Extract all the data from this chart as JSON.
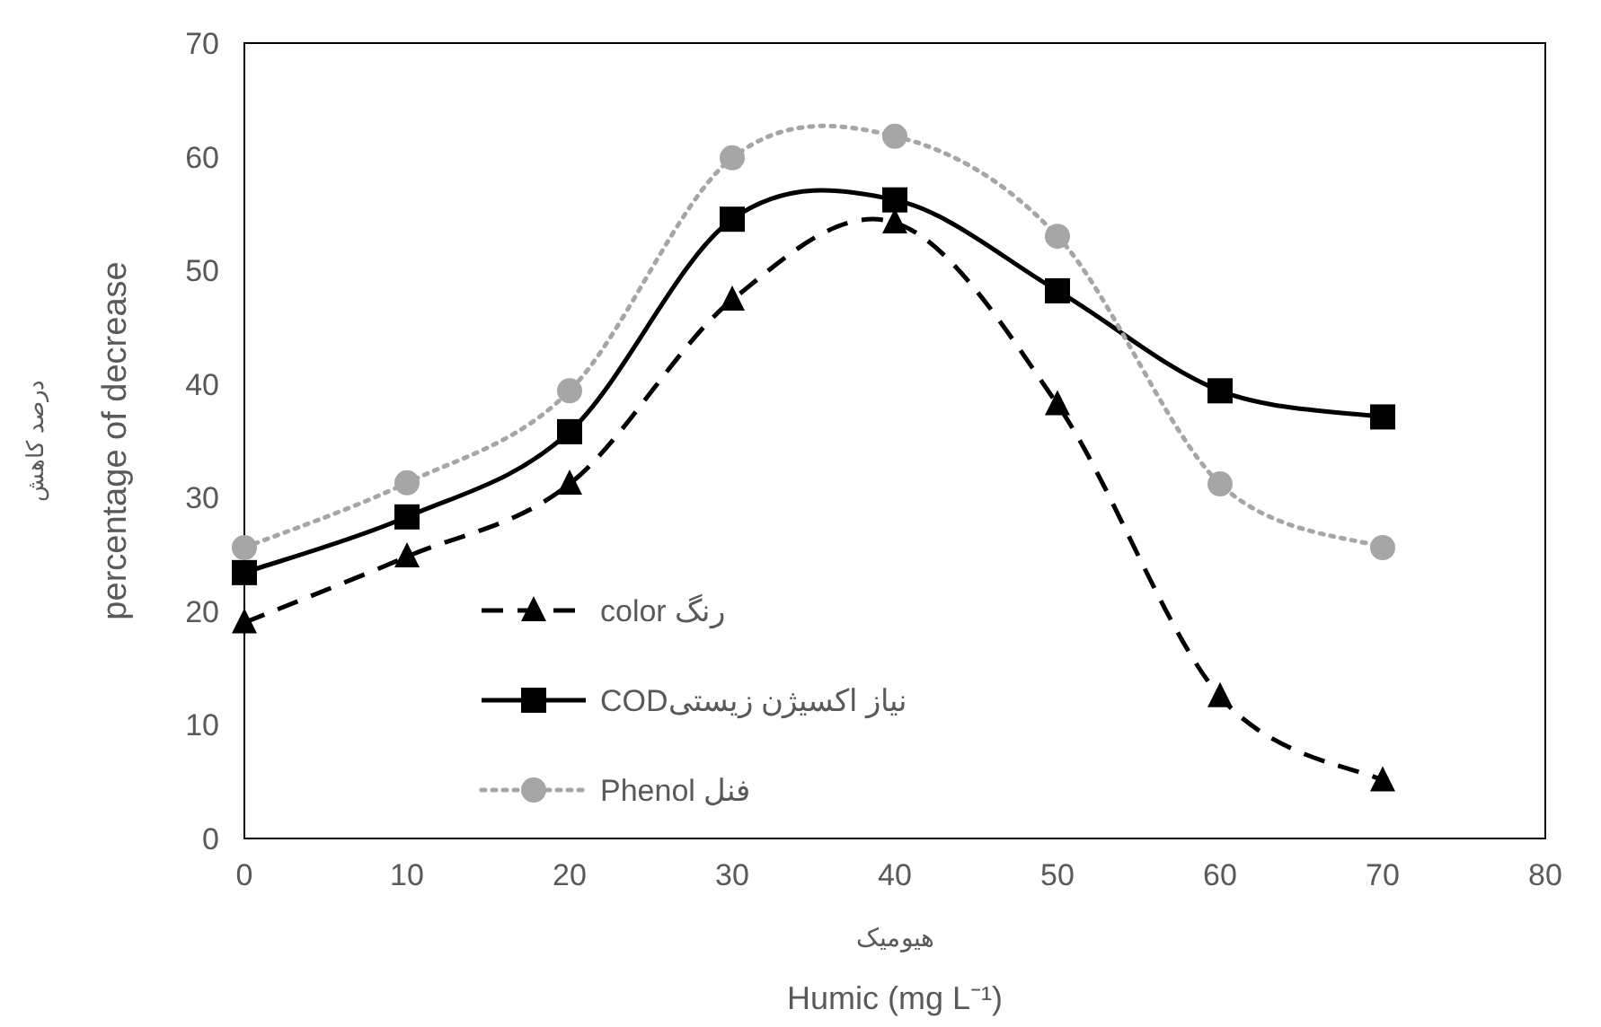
{
  "chart_data": {
    "type": "line",
    "xlabel": "هیومیک\nHumic (mg L⁻¹)",
    "ylabel": "درصد کاهش\npercentage of decrease",
    "x": [
      0,
      10,
      20,
      30,
      40,
      50,
      60,
      70
    ],
    "xlim": [
      0,
      80
    ],
    "xticks": [
      0,
      10,
      20,
      30,
      40,
      50,
      60,
      70,
      80
    ],
    "ylim": [
      0,
      70
    ],
    "yticks": [
      0,
      10,
      20,
      30,
      40,
      50,
      60,
      70
    ],
    "grid": false,
    "legend": "bottom left",
    "series": [
      {
        "name": "color رنگ",
        "color": "#000000",
        "marker": "triangle",
        "line_style": "dashed",
        "values": [
          19.0,
          24.8,
          31.2,
          47.4,
          54.2,
          38.2,
          12.5,
          5.1
        ]
      },
      {
        "name": "CODنیاز اکسیژن زیستی",
        "color": "#000000",
        "marker": "square",
        "line_style": "solid",
        "values": [
          23.4,
          28.3,
          35.8,
          54.5,
          56.2,
          48.2,
          39.4,
          37.1
        ]
      },
      {
        "name": "Phenol فنل",
        "color": "#a6a6a6",
        "marker": "circle",
        "line_style": "dotted",
        "values": [
          25.6,
          31.3,
          39.4,
          59.9,
          61.8,
          53.0,
          31.2,
          25.6
        ]
      }
    ]
  }
}
